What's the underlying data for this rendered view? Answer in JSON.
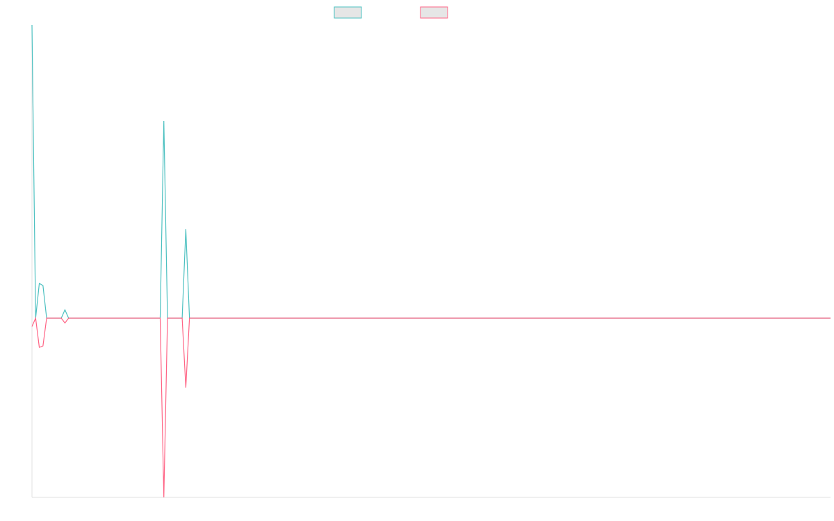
{
  "chart_data": {
    "type": "line",
    "ylim": [
      -2.58,
      4.22
    ],
    "grid": false,
    "legend": "top",
    "series": [
      {
        "color": "#4bc0c0",
        "values": [
          4.22,
          0,
          0.5,
          0.47,
          0,
          0,
          0,
          0,
          0,
          0.12,
          0,
          0,
          0,
          0,
          0,
          0,
          0,
          0,
          0,
          0,
          0,
          0,
          0,
          0,
          0,
          0,
          0,
          0,
          0,
          0,
          0,
          0,
          0,
          0,
          0,
          0,
          2.84,
          0,
          0,
          0,
          0,
          0,
          1.28,
          0,
          0,
          0,
          0,
          0,
          0,
          0,
          0,
          0,
          0,
          0,
          0,
          0,
          0,
          0,
          0,
          0,
          0,
          0,
          0,
          0,
          0,
          0,
          0,
          0,
          0,
          0,
          0,
          0,
          0,
          0,
          0,
          0,
          0,
          0,
          0,
          0,
          0,
          0,
          0,
          0,
          0,
          0,
          0,
          0,
          0,
          0,
          0,
          0,
          0,
          0,
          0,
          0,
          0,
          0,
          0,
          0,
          0,
          0,
          0,
          0,
          0,
          0,
          0,
          0,
          0,
          0,
          0,
          0,
          0,
          0,
          0,
          0,
          0,
          0,
          0,
          0,
          0,
          0,
          0,
          0,
          0,
          0,
          0,
          0,
          0,
          0,
          0,
          0,
          0,
          0,
          0,
          0,
          0,
          0,
          0,
          0,
          0,
          0,
          0,
          0,
          0,
          0,
          0,
          0,
          0,
          0,
          0,
          0,
          0,
          0,
          0,
          0,
          0,
          0,
          0,
          0,
          0,
          0,
          0,
          0,
          0,
          0,
          0,
          0,
          0,
          0,
          0,
          0,
          0,
          0,
          0,
          0,
          0,
          0,
          0,
          0,
          0,
          0,
          0,
          0,
          0,
          0,
          0,
          0,
          0,
          0,
          0,
          0,
          0,
          0,
          0,
          0,
          0,
          0,
          0,
          0,
          0,
          0,
          0,
          0,
          0,
          0,
          0,
          0,
          0,
          0,
          0,
          0,
          0,
          0,
          0,
          0,
          0,
          0,
          0
        ]
      },
      {
        "color": "#ff6384",
        "values": [
          -0.12,
          0,
          -0.42,
          -0.4,
          0,
          0,
          0,
          0,
          0,
          -0.07,
          0,
          0,
          0,
          0,
          0,
          0,
          0,
          0,
          0,
          0,
          0,
          0,
          0,
          0,
          0,
          0,
          0,
          0,
          0,
          0,
          0,
          0,
          0,
          0,
          0,
          0,
          -2.58,
          0,
          0,
          0,
          0,
          0,
          -1.0,
          0,
          0,
          0,
          0,
          0,
          0,
          0,
          0,
          0,
          0,
          0,
          0,
          0,
          0,
          0,
          0,
          0,
          0,
          0,
          0,
          0,
          0,
          0,
          0,
          0,
          0,
          0,
          0,
          0,
          0,
          0,
          0,
          0,
          0,
          0,
          0,
          0,
          0,
          0,
          0,
          0,
          0,
          0,
          0,
          0,
          0,
          0,
          0,
          0,
          0,
          0,
          0,
          0,
          0,
          0,
          0,
          0,
          0,
          0,
          0,
          0,
          0,
          0,
          0,
          0,
          0,
          0,
          0,
          0,
          0,
          0,
          0,
          0,
          0,
          0,
          0,
          0,
          0,
          0,
          0,
          0,
          0,
          0,
          0,
          0,
          0,
          0,
          0,
          0,
          0,
          0,
          0,
          0,
          0,
          0,
          0,
          0,
          0,
          0,
          0,
          0,
          0,
          0,
          0,
          0,
          0,
          0,
          0,
          0,
          0,
          0,
          0,
          0,
          0,
          0,
          0,
          0,
          0,
          0,
          0,
          0,
          0,
          0,
          0,
          0,
          0,
          0,
          0,
          0,
          0,
          0,
          0,
          0,
          0,
          0,
          0,
          0,
          0,
          0,
          0,
          0,
          0,
          0,
          0,
          0,
          0,
          0,
          0,
          0,
          0,
          0,
          0,
          0,
          0,
          0,
          0,
          0,
          0,
          0,
          0,
          0,
          0,
          0,
          0,
          0,
          0,
          0,
          0,
          0,
          0,
          0,
          0,
          0,
          0,
          0,
          0
        ]
      }
    ]
  }
}
